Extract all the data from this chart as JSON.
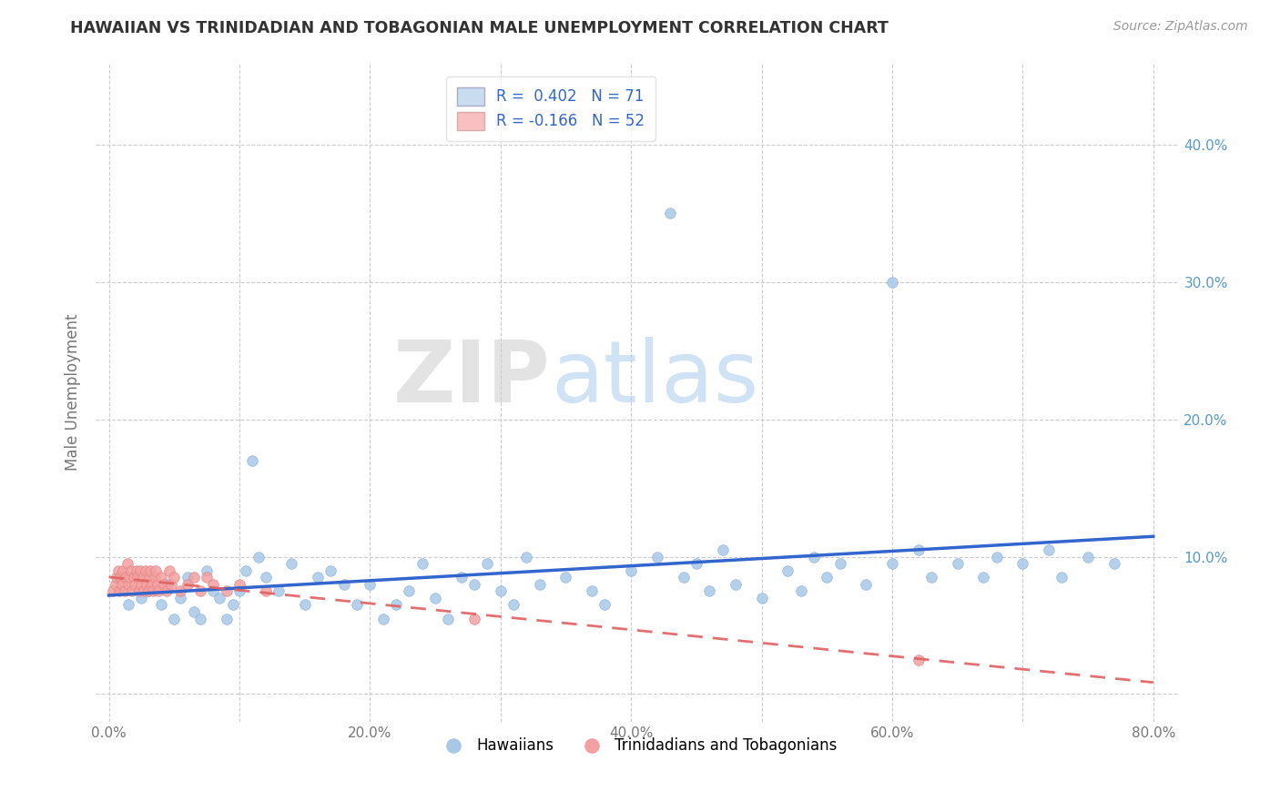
{
  "title": "HAWAIIAN VS TRINIDADIAN AND TOBAGONIAN MALE UNEMPLOYMENT CORRELATION CHART",
  "source": "Source: ZipAtlas.com",
  "ylabel": "Male Unemployment",
  "watermark_zip": "ZIP",
  "watermark_atlas": "atlas",
  "legend_blue_label": "R =  0.402   N = 71",
  "legend_pink_label": "R = -0.166   N = 52",
  "legend_hawaiians": "Hawaiians",
  "legend_trinidadians": "Trinidadians and Tobagonians",
  "blue_color": "#a8c8e8",
  "pink_color": "#f4a0a0",
  "blue_line_color": "#3366cc",
  "pink_line_color": "#e06060",
  "background_color": "#ffffff",
  "grid_color": "#cccccc",
  "xlim": [
    -0.01,
    0.82
  ],
  "ylim": [
    -0.02,
    0.46
  ],
  "xticks": [
    0.0,
    0.1,
    0.2,
    0.3,
    0.4,
    0.5,
    0.6,
    0.7,
    0.8
  ],
  "yticks": [
    0.0,
    0.1,
    0.2,
    0.3,
    0.4
  ],
  "xticklabels": [
    "0.0%",
    "",
    "20.0%",
    "",
    "40.0%",
    "",
    "60.0%",
    "",
    "80.0%"
  ],
  "yticklabels_right": [
    "",
    "10.0%",
    "20.0%",
    "30.0%",
    "40.0%"
  ],
  "haw_x": [
    0.015,
    0.025,
    0.03,
    0.04,
    0.045,
    0.05,
    0.055,
    0.06,
    0.065,
    0.07,
    0.075,
    0.08,
    0.085,
    0.09,
    0.095,
    0.1,
    0.105,
    0.11,
    0.115,
    0.12,
    0.13,
    0.14,
    0.15,
    0.16,
    0.17,
    0.18,
    0.19,
    0.2,
    0.21,
    0.22,
    0.23,
    0.24,
    0.25,
    0.26,
    0.27,
    0.28,
    0.29,
    0.3,
    0.31,
    0.32,
    0.33,
    0.35,
    0.37,
    0.38,
    0.4,
    0.42,
    0.44,
    0.45,
    0.46,
    0.47,
    0.48,
    0.5,
    0.52,
    0.53,
    0.54,
    0.55,
    0.56,
    0.58,
    0.6,
    0.62,
    0.63,
    0.65,
    0.67,
    0.68,
    0.7,
    0.72,
    0.73,
    0.75,
    0.77,
    0.43,
    0.6
  ],
  "haw_y": [
    0.065,
    0.07,
    0.075,
    0.065,
    0.08,
    0.055,
    0.07,
    0.085,
    0.06,
    0.055,
    0.09,
    0.075,
    0.07,
    0.055,
    0.065,
    0.075,
    0.09,
    0.17,
    0.1,
    0.085,
    0.075,
    0.095,
    0.065,
    0.085,
    0.09,
    0.08,
    0.065,
    0.08,
    0.055,
    0.065,
    0.075,
    0.095,
    0.07,
    0.055,
    0.085,
    0.08,
    0.095,
    0.075,
    0.065,
    0.1,
    0.08,
    0.085,
    0.075,
    0.065,
    0.09,
    0.1,
    0.085,
    0.095,
    0.075,
    0.105,
    0.08,
    0.07,
    0.09,
    0.075,
    0.1,
    0.085,
    0.095,
    0.08,
    0.095,
    0.105,
    0.085,
    0.095,
    0.085,
    0.1,
    0.095,
    0.105,
    0.085,
    0.1,
    0.095,
    0.35,
    0.3
  ],
  "tri_x": [
    0.003,
    0.005,
    0.006,
    0.007,
    0.008,
    0.009,
    0.01,
    0.011,
    0.012,
    0.013,
    0.014,
    0.015,
    0.016,
    0.017,
    0.018,
    0.019,
    0.02,
    0.021,
    0.022,
    0.023,
    0.024,
    0.025,
    0.026,
    0.027,
    0.028,
    0.029,
    0.03,
    0.031,
    0.032,
    0.033,
    0.034,
    0.035,
    0.036,
    0.037,
    0.038,
    0.04,
    0.042,
    0.044,
    0.046,
    0.048,
    0.05,
    0.055,
    0.06,
    0.065,
    0.07,
    0.075,
    0.08,
    0.09,
    0.1,
    0.12,
    0.62,
    0.28
  ],
  "tri_y": [
    0.075,
    0.08,
    0.085,
    0.09,
    0.075,
    0.085,
    0.08,
    0.09,
    0.075,
    0.085,
    0.095,
    0.08,
    0.085,
    0.09,
    0.075,
    0.085,
    0.08,
    0.09,
    0.085,
    0.075,
    0.09,
    0.08,
    0.085,
    0.075,
    0.09,
    0.08,
    0.075,
    0.085,
    0.09,
    0.08,
    0.075,
    0.085,
    0.09,
    0.08,
    0.075,
    0.085,
    0.08,
    0.075,
    0.09,
    0.08,
    0.085,
    0.075,
    0.08,
    0.085,
    0.075,
    0.085,
    0.08,
    0.075,
    0.08,
    0.075,
    0.025,
    0.055
  ]
}
